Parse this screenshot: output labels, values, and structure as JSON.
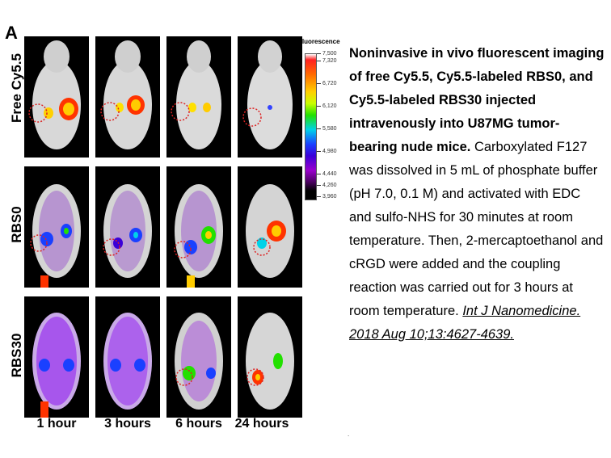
{
  "figure": {
    "panel_letter": "A",
    "row_labels": [
      "Free Cy5.5",
      "RBS0",
      "RBS30"
    ],
    "time_labels": [
      "1 hour",
      "3 hours",
      "6 hours",
      "24 hours"
    ],
    "colorbar": {
      "title": "Fluorescence",
      "ticks": [
        "7,500",
        "7,320",
        "6,720",
        "6,120",
        "5,580",
        "4,980",
        "4,440",
        "4,260",
        "3,960"
      ]
    }
  },
  "caption": {
    "title": "Noninvasive in vivo fluorescent imaging of free Cy5.5, Cy5.5-labeled RBS0, and Cy5.5-labeled RBS30 injected intravenously into U87MG tumor-bearing nude mice.",
    "body": "Carboxylated F127 was dissolved in 5 mL of phosphate buffer (pH 7.0, 0.1 M) and activated with EDC and sulfo-NHS for 30 minutes at room temperature. Then, 2-mercaptoethanol and cRGD were added and the coupling reaction was carried out for 3 hours at room temperature.",
    "citation": "Int J Nanomedicine. 2018 Aug 10;13:4627-4639."
  }
}
